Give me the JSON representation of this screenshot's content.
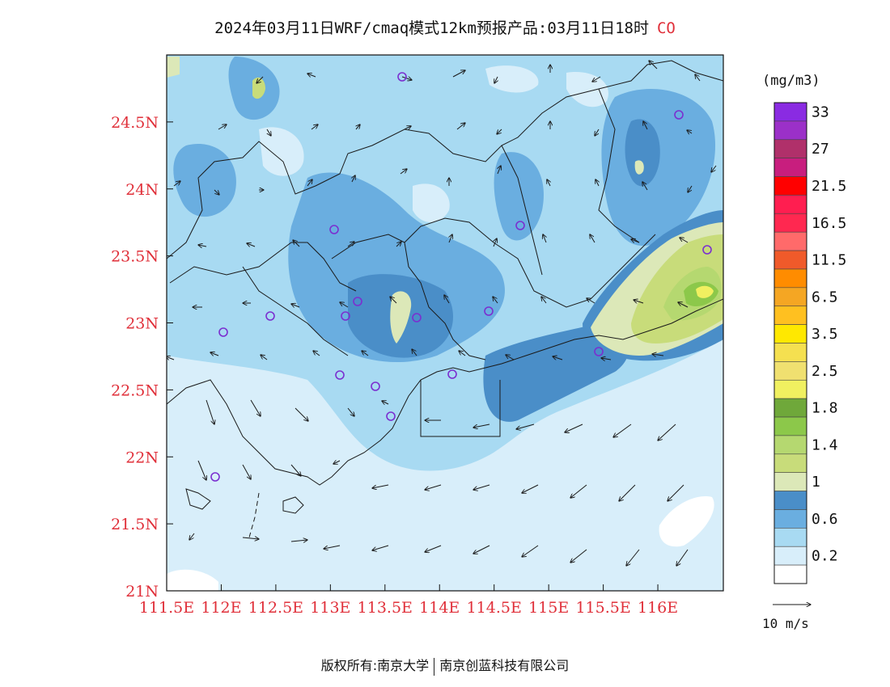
{
  "title": {
    "text": "2024年03月11日WRF/cmaq模式12km预报产品:03月11日18时",
    "species": "CO"
  },
  "colors": {
    "axis_label": "#e0303a",
    "species_label": "#e0303a",
    "station_marker": "#7b2fd0",
    "boundary": "#1a1a1a",
    "wind_arrow": "#1a1a1a"
  },
  "axes": {
    "x_ticks": [
      "111.5E",
      "112E",
      "112.5E",
      "113E",
      "113.5E",
      "114E",
      "114.5E",
      "115E",
      "115.5E",
      "116E"
    ],
    "y_ticks": [
      "21N",
      "21.5N",
      "22N",
      "22.5N",
      "23N",
      "23.5N",
      "24N",
      "24.5N"
    ],
    "x_values": [
      111.5,
      112.0,
      112.5,
      113.0,
      113.5,
      114.0,
      114.5,
      115.0,
      115.5,
      116.0
    ],
    "y_values": [
      21.0,
      21.5,
      22.0,
      22.5,
      23.0,
      23.5,
      24.0,
      24.5
    ],
    "lon_range": [
      111.5,
      116.6
    ],
    "lat_range": [
      21.0,
      25.0
    ]
  },
  "legend": {
    "unit": "(mg/m3)",
    "levels": [
      {
        "label": "33",
        "color": "#8a2be2"
      },
      {
        "label": "",
        "color": "#9b30c8"
      },
      {
        "label": "27",
        "color": "#b0306a"
      },
      {
        "label": "",
        "color": "#c81e7e"
      },
      {
        "label": "21.5",
        "color": "#ff0000"
      },
      {
        "label": "",
        "color": "#ff1e50"
      },
      {
        "label": "16.5",
        "color": "#ff2850"
      },
      {
        "label": "",
        "color": "#ff6a6a"
      },
      {
        "label": "11.5",
        "color": "#f05a2a"
      },
      {
        "label": "",
        "color": "#ff8c00"
      },
      {
        "label": "6.5",
        "color": "#f5a623"
      },
      {
        "label": "",
        "color": "#ffc020"
      },
      {
        "label": "3.5",
        "color": "#ffe800"
      },
      {
        "label": "",
        "color": "#f5e050"
      },
      {
        "label": "2.5",
        "color": "#f0e070"
      },
      {
        "label": "",
        "color": "#f0f060"
      },
      {
        "label": "1.8",
        "color": "#6fa83a"
      },
      {
        "label": "",
        "color": "#8cc84a"
      },
      {
        "label": "1.4",
        "color": "#b5d870"
      },
      {
        "label": "",
        "color": "#c8dc7a"
      },
      {
        "label": "1",
        "color": "#dce8b8"
      },
      {
        "label": "",
        "color": "#4a8ec8"
      },
      {
        "label": "0.6",
        "color": "#6aaee0"
      },
      {
        "label": "",
        "color": "#a8daf2"
      },
      {
        "label": "0.2",
        "color": "#d8eefa"
      },
      {
        "label": "",
        "color": "#ffffff"
      }
    ]
  },
  "wind_reference": {
    "label": "10 m/s"
  },
  "footer": {
    "left": "版权所有:南京大学",
    "right": "南京创蓝科技有限公司"
  }
}
